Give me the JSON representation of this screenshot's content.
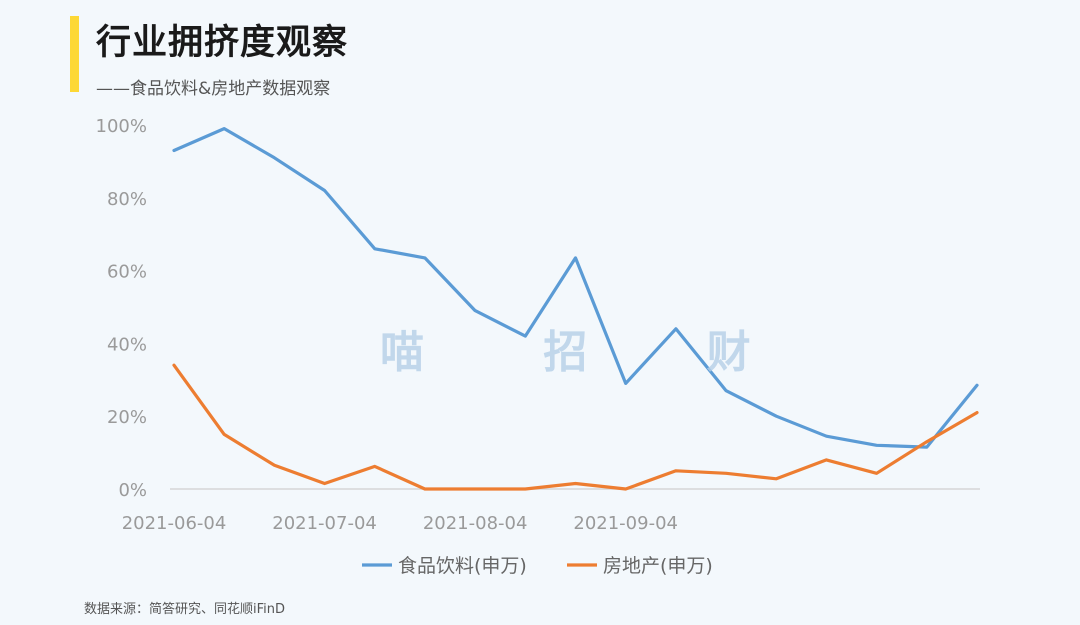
{
  "header": {
    "title": "行业拥挤度观察",
    "subtitle": "——食品饮料&房地产数据观察"
  },
  "watermark": "喵 招 财",
  "source": "数据来源：简答研究、同花顺iFinD",
  "chart_data": {
    "type": "line",
    "x": [
      "2021-06-04",
      "2021-06-14",
      "2021-06-24",
      "2021-07-04",
      "2021-07-14",
      "2021-07-24",
      "2021-08-04",
      "2021-08-14",
      "2021-08-24",
      "2021-09-04",
      "2021-09-14",
      "2021-09-24",
      "2021-10-04",
      "2021-10-14",
      "2021-10-24",
      "2021-11-04",
      "2021-11-14"
    ],
    "x_tick_labels": [
      "2021-06-04",
      "2021-07-04",
      "2021-08-04",
      "2021-09-04"
    ],
    "y_tick_labels": [
      "0%",
      "20%",
      "40%",
      "60%",
      "80%",
      "100%"
    ],
    "ylim": [
      0,
      100
    ],
    "grid": false,
    "legend_position": "bottom",
    "series": [
      {
        "name": "食品饮料(申万)",
        "color": "#5b9bd5",
        "values": [
          93,
          99,
          91,
          82,
          66,
          63.5,
          49,
          42,
          63.5,
          29,
          44,
          27,
          20,
          14.5,
          12,
          11.5,
          28.5
        ]
      },
      {
        "name": "房地产(申万)",
        "color": "#ed7d31",
        "values": [
          34,
          15,
          6.5,
          1.5,
          6.2,
          0,
          0,
          0,
          1.5,
          0,
          5,
          4.3,
          2.8,
          8,
          4.3,
          13,
          21
        ]
      }
    ]
  }
}
